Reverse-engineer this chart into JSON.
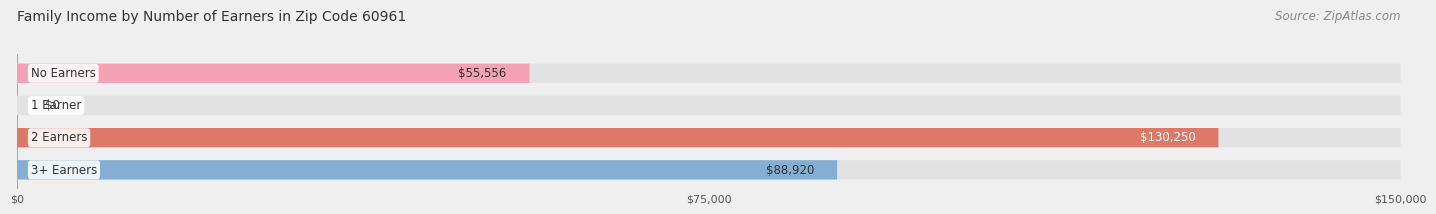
{
  "title": "Family Income by Number of Earners in Zip Code 60961",
  "source": "Source: ZipAtlas.com",
  "categories": [
    "No Earners",
    "1 Earner",
    "2 Earners",
    "3+ Earners"
  ],
  "values": [
    55556,
    0,
    130250,
    88920
  ],
  "bar_colors": [
    "#f4a0b5",
    "#e8c99a",
    "#e07868",
    "#85aed4"
  ],
  "label_colors": [
    "#333333",
    "#333333",
    "#ffffff",
    "#333333"
  ],
  "value_labels": [
    "$55,556",
    "$0",
    "$130,250",
    "$88,920"
  ],
  "xlim": [
    0,
    150000
  ],
  "xtick_values": [
    0,
    75000,
    150000
  ],
  "xtick_labels": [
    "$0",
    "$75,000",
    "$150,000"
  ],
  "background_color": "#efefef",
  "bar_background_color": "#e2e2e2",
  "title_fontsize": 10,
  "source_fontsize": 8.5,
  "label_fontsize": 8.5,
  "value_fontsize": 8.5
}
